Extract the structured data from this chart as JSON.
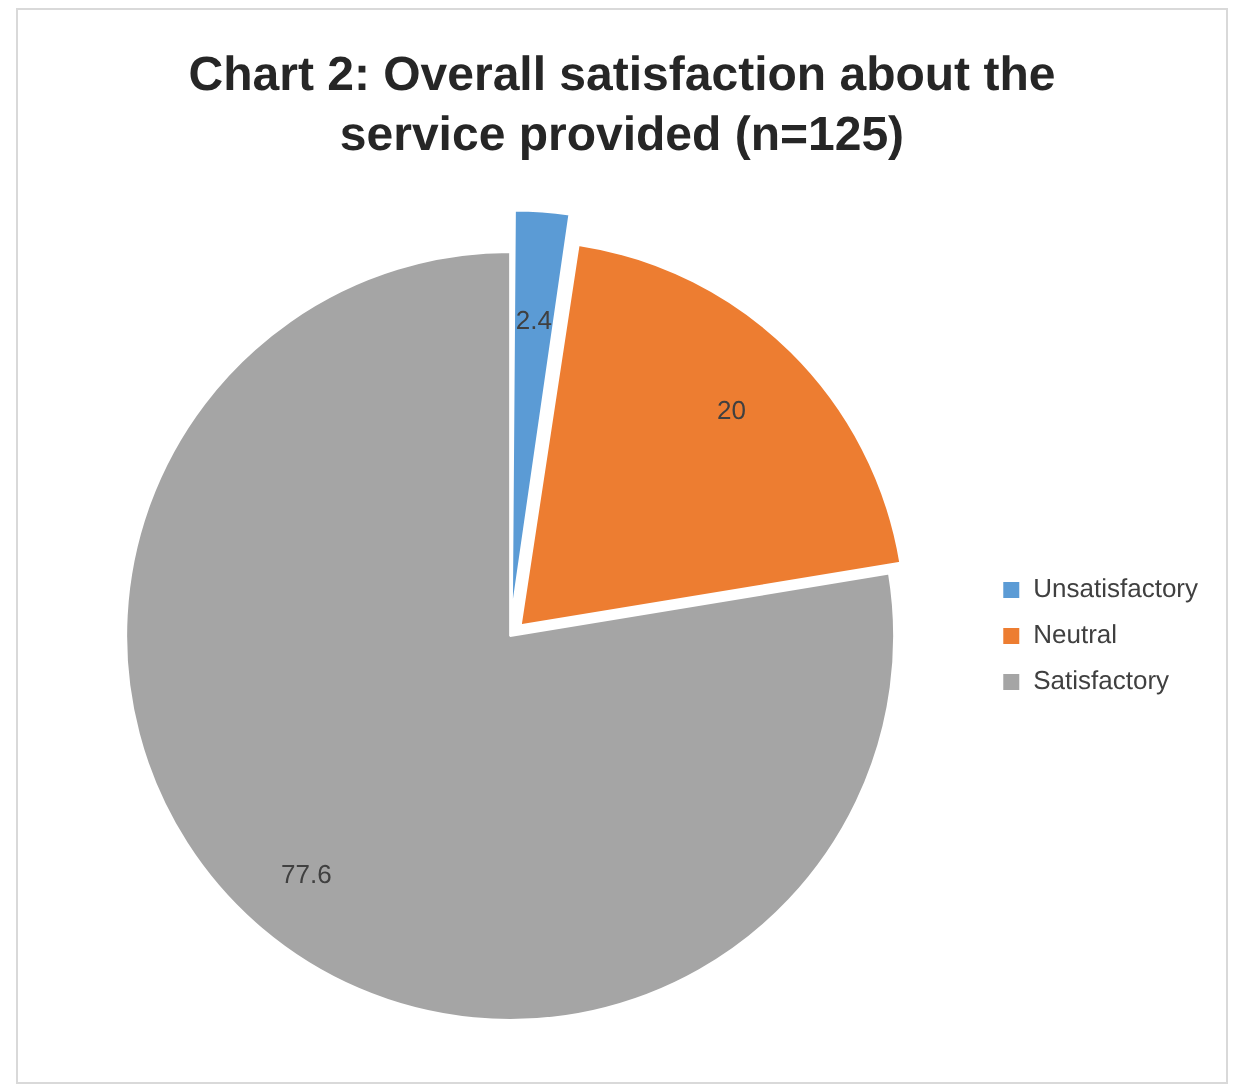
{
  "chart_data": {
    "type": "pie",
    "title": "Chart 2: Overall satisfaction about the service provided (n=125)",
    "categories": [
      "Unsatisfactory",
      "Neutral",
      "Satisfactory"
    ],
    "values": [
      2.4,
      20,
      77.6
    ],
    "colors": [
      "#5b9bd5",
      "#ed7d31",
      "#a5a5a5"
    ],
    "data_labels": true,
    "legend": "right"
  }
}
